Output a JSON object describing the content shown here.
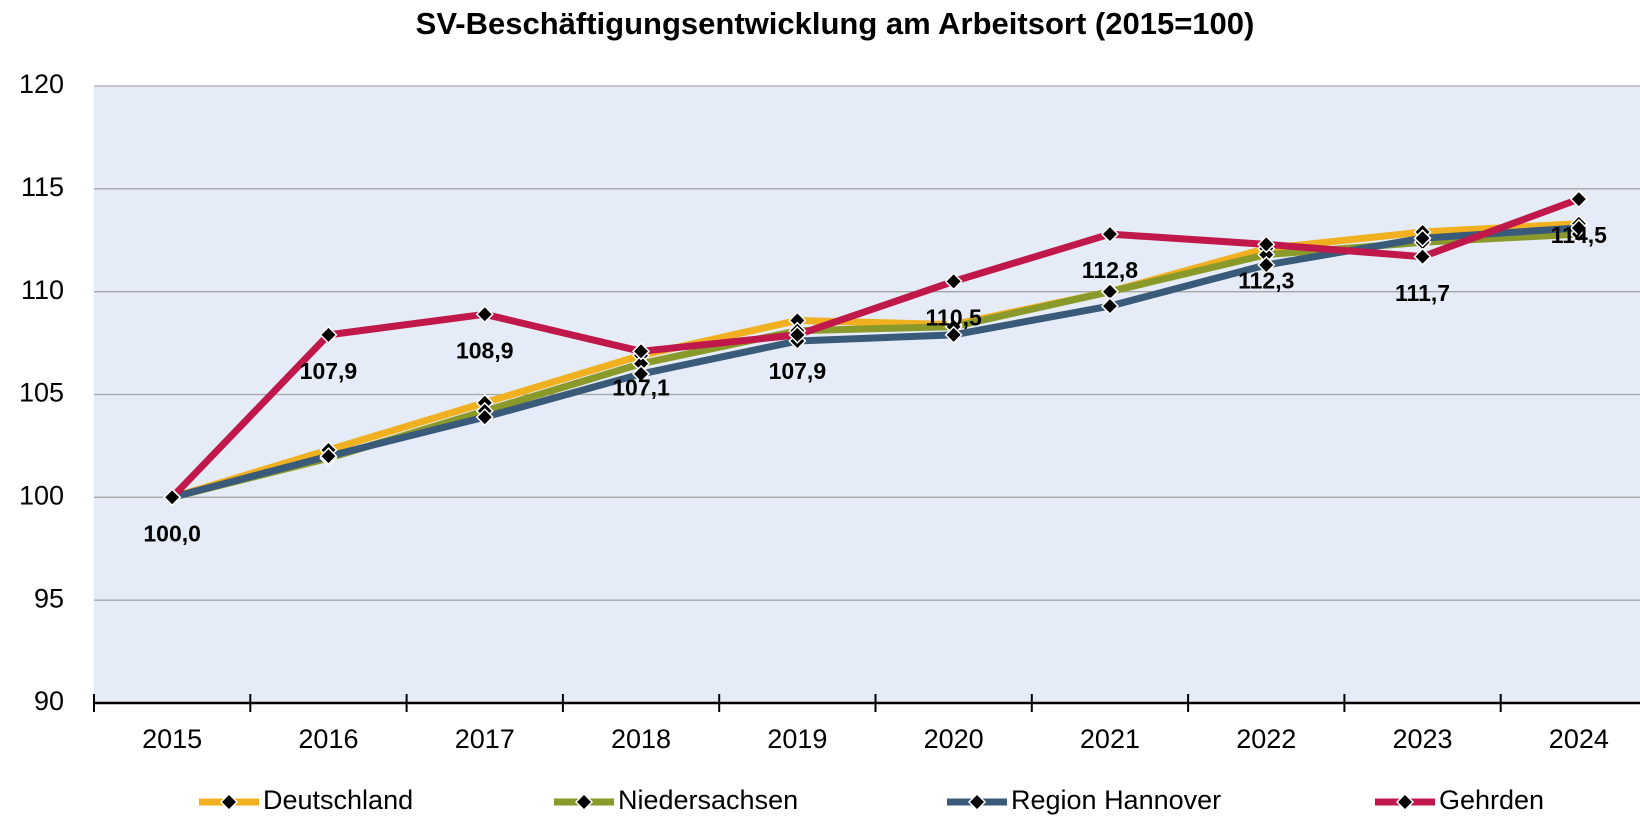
{
  "chart_data": {
    "type": "line",
    "title": "SV-Beschäftigungsentwicklung am Arbeitsort (2015=100)",
    "categories": [
      "2015",
      "2016",
      "2017",
      "2018",
      "2019",
      "2020",
      "2021",
      "2022",
      "2023",
      "2024"
    ],
    "series": [
      {
        "name": "Deutschland",
        "color": "#f0b020",
        "values": [
          100,
          102.3,
          104.6,
          106.9,
          108.6,
          108.4,
          110.0,
          112.1,
          112.9,
          113.3
        ]
      },
      {
        "name": "Niedersachsen",
        "color": "#8a9a2a",
        "values": [
          100,
          101.9,
          104.2,
          106.5,
          108.1,
          108.3,
          110.0,
          111.8,
          112.4,
          112.8
        ]
      },
      {
        "name": "Region Hannover",
        "color": "#3a5a7a",
        "values": [
          100,
          102.0,
          103.9,
          106.0,
          107.6,
          107.9,
          109.3,
          111.3,
          112.6,
          113.1
        ]
      },
      {
        "name": "Gehrden",
        "color": "#c0184a",
        "values": [
          100.0,
          107.9,
          108.9,
          107.1,
          107.9,
          110.5,
          112.8,
          112.3,
          111.7,
          114.5
        ],
        "value_labels": [
          "100,0",
          "107,9",
          "108,9",
          "107,1",
          "107,9",
          "110,5",
          "112,8",
          "112,3",
          "111,7",
          "114,5"
        ]
      }
    ],
    "ylim": [
      90,
      120
    ],
    "yticks": [
      90,
      95,
      100,
      105,
      110,
      115,
      120
    ],
    "grid": true,
    "legend": "bottom"
  }
}
